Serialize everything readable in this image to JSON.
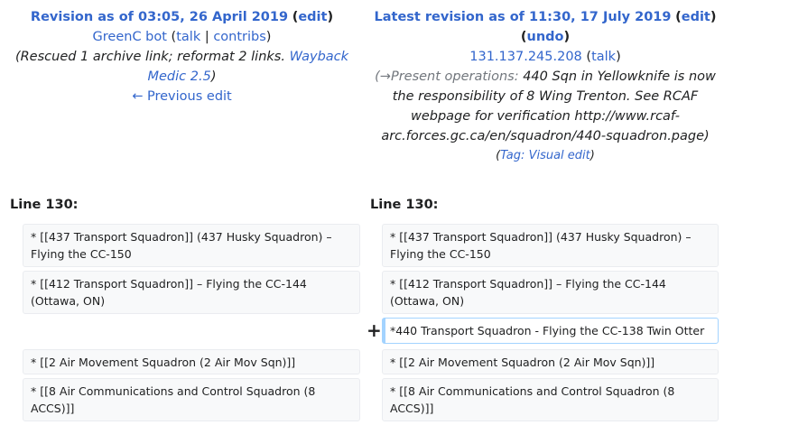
{
  "left": {
    "title_prefix": "Revision as of 03:05, 26 April 2019",
    "edit": "edit",
    "user": "GreenC bot",
    "talk": "talk",
    "contribs": "contribs",
    "comment": "(Rescued 1 archive link; reformat 2 links. ",
    "comment_link": "Wayback Medic 2.5",
    "comment_end": ")",
    "prev_edit": "← Previous edit",
    "line_label": "Line 130:"
  },
  "right": {
    "title_prefix": "Latest revision as of 11:30, 17 July 2019",
    "edit": "edit",
    "undo": "undo",
    "user": "131.137.245.208",
    "talk": "talk",
    "comment_arrow": "(→Present operations:",
    "comment": "440 Sqn in Yellowknife is now the responsibility of 8 Wing Trenton. See RCAF webpage for verification http://www.rcaf-arc.forces.gc.ca/en/squadron/440-squadron.page)",
    "tag_label": "Tag:",
    "tag_value": "Visual edit",
    "line_label": "Line 130:"
  },
  "diff": {
    "marker": "+",
    "left_rows": [
      "* [[437 Transport Squadron]] (437 Husky Squadron) – Flying the CC-150",
      "* [[412 Transport Squadron]] – Flying the CC-144 (Ottawa, ON)",
      "* [[2 Air Movement Squadron (2 Air Mov Sqn)]]",
      "* [[8 Air Communications and Control Squadron (8 ACCS)]]"
    ],
    "right_rows": [
      "* [[437 Transport Squadron]] (437 Husky Squadron) – Flying the CC-150",
      "* [[412 Transport Squadron]] – Flying the CC-144 (Ottawa, ON)",
      "*440 Transport Squadron - Flying the CC-138 Twin Otter",
      "* [[2 Air Movement Squadron (2 Air Mov Sqn)]]",
      "* [[8 Air Communications and Control Squadron (8 ACCS)]]"
    ]
  }
}
